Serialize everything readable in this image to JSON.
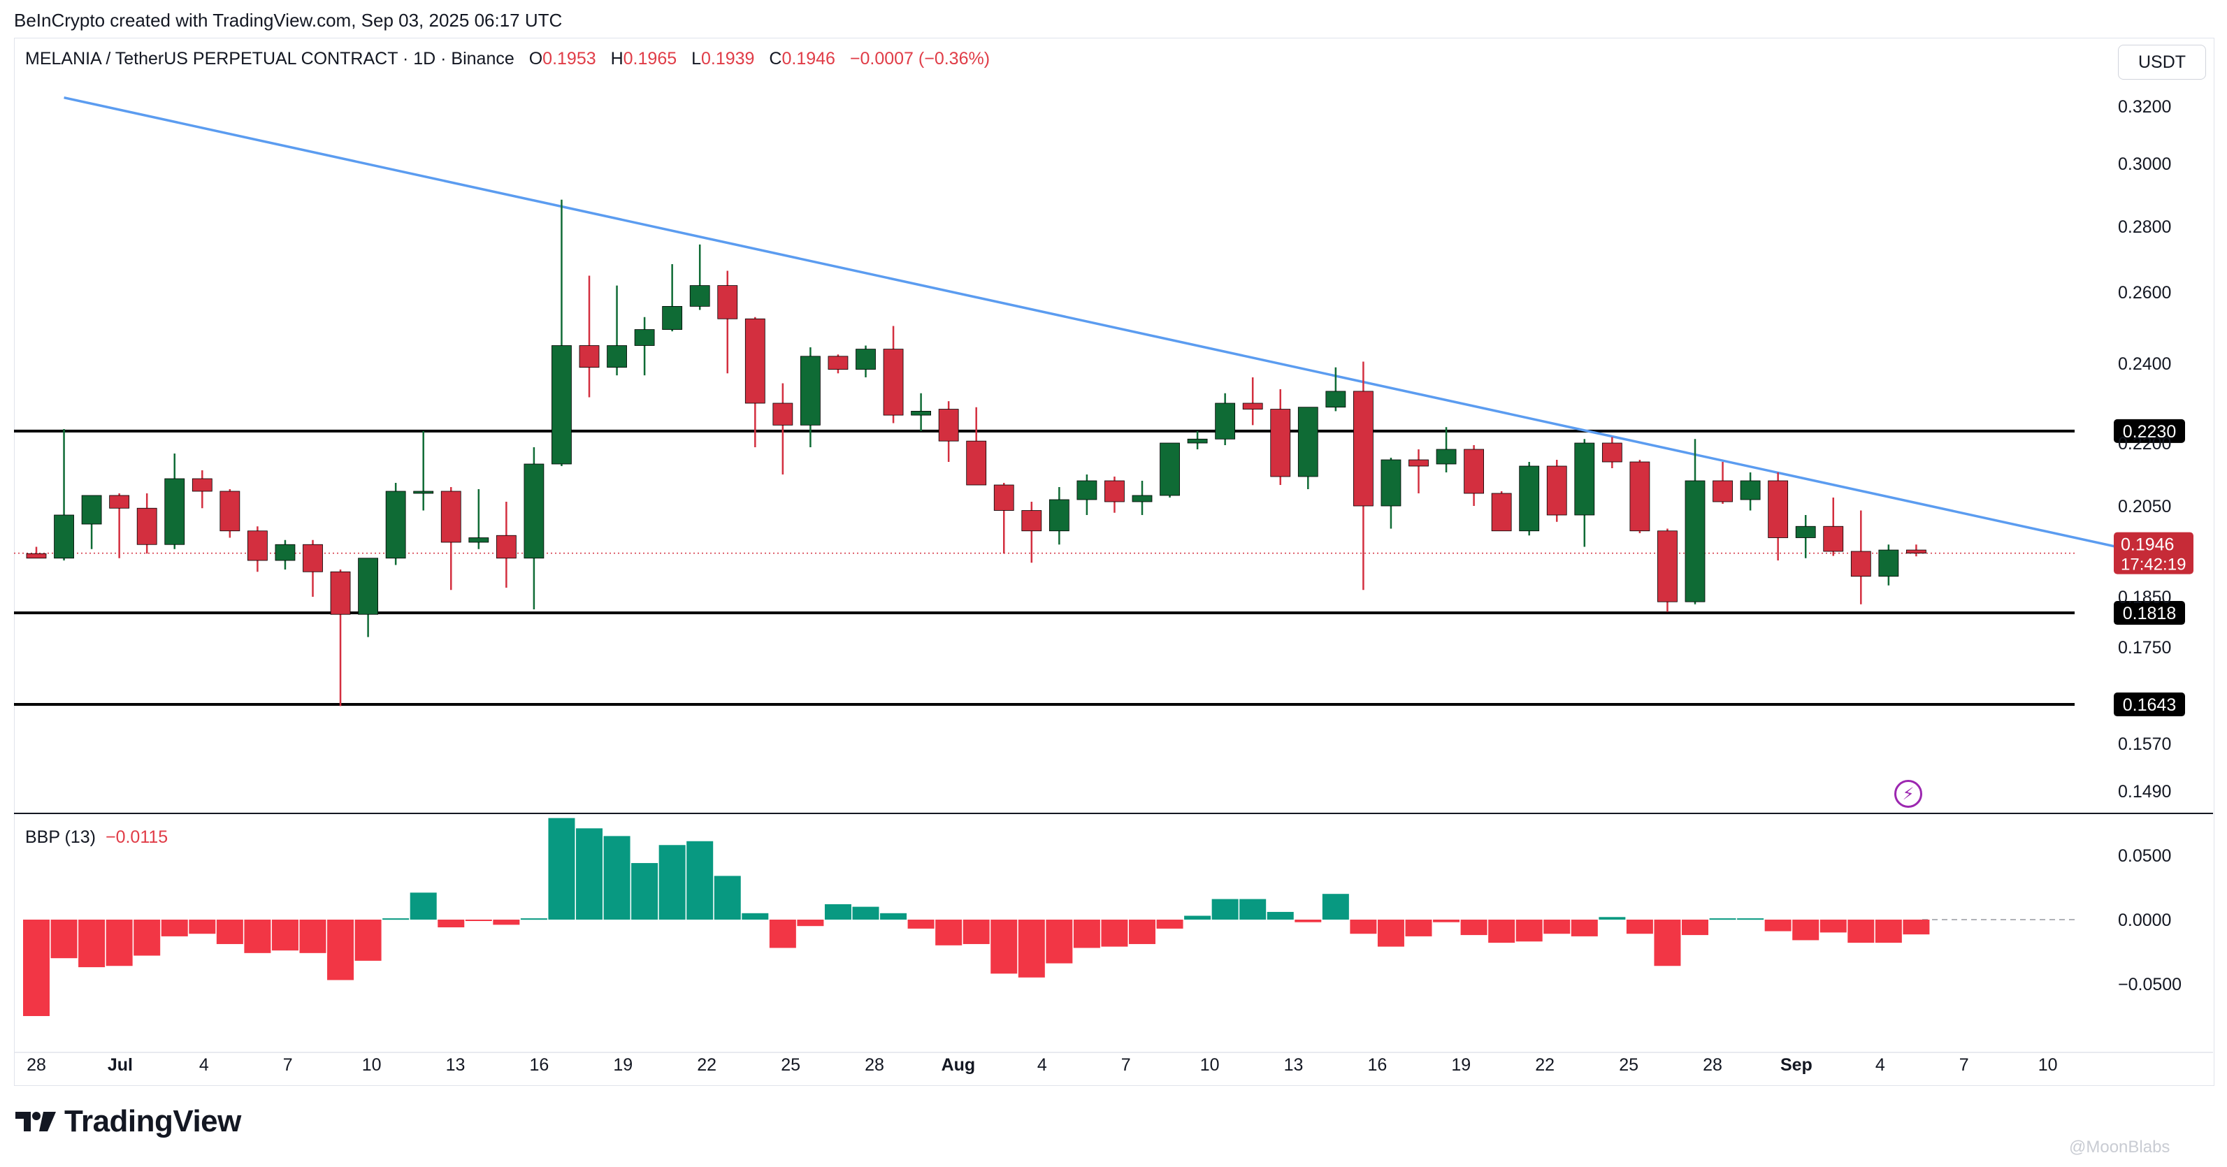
{
  "header": {
    "credit": "BeInCrypto created with TradingView.com, Sep 03, 2025 06:17 UTC"
  },
  "symbol": {
    "name": "MELANIA / TetherUS PERPETUAL CONTRACT · 1D · Binance",
    "o_label": "O",
    "o": "0.1953",
    "h_label": "H",
    "h": "0.1965",
    "l_label": "L",
    "l": "0.1939",
    "c_label": "C",
    "c": "0.1946",
    "change": "−0.0007 (−0.36%)"
  },
  "currency": "USDT",
  "indicator": {
    "name": "BBP (13)",
    "value": "−0.0115"
  },
  "branding": {
    "logo_text": "TradingView",
    "watermark": "@MoonBlabs"
  },
  "colors": {
    "up": "#0f6b35",
    "down": "#d32f3f",
    "trendline": "#5b9cf0",
    "bbp_up": "#089981",
    "bbp_down": "#f23645",
    "price_tag": "#c62b37"
  },
  "chart_data": [
    {
      "type": "candlestick",
      "title": "MELANIA / TetherUS PERPETUAL CONTRACT · 1D · Binance",
      "x_ticks": [
        "28",
        "Jul",
        "4",
        "7",
        "10",
        "13",
        "16",
        "19",
        "22",
        "25",
        "28",
        "Aug",
        "4",
        "7",
        "10",
        "13",
        "16",
        "19",
        "22",
        "25",
        "28",
        "Sep",
        "4",
        "7",
        "10"
      ],
      "y_ticks": [
        "0.3200",
        "0.3000",
        "0.2800",
        "0.2600",
        "0.2400",
        "0.2200",
        "0.2050",
        "0.1850",
        "0.1750",
        "0.1570",
        "0.1490"
      ],
      "levels": [
        {
          "value": 0.223,
          "label": "0.2230"
        },
        {
          "value": 0.1818,
          "label": "0.1818"
        },
        {
          "value": 0.1643,
          "label": "0.1643"
        }
      ],
      "last_price": {
        "value": 0.1946,
        "label": "0.1946",
        "countdown": "17:42:19"
      },
      "trendline": {
        "from": {
          "date": "Jun 29",
          "value": 0.323
        },
        "to": {
          "date": "Sep 12",
          "value": 0.195
        }
      },
      "candles": [
        {
          "d": "Jun 28",
          "o": 0.1945,
          "h": 0.196,
          "l": 0.1935,
          "c": 0.1935
        },
        {
          "d": "Jun 29",
          "o": 0.1935,
          "h": 0.2235,
          "l": 0.193,
          "c": 0.203
        },
        {
          "d": "Jun 30",
          "o": 0.201,
          "h": 0.2075,
          "l": 0.1955,
          "c": 0.2075
        },
        {
          "d": "Jul 1",
          "o": 0.2075,
          "h": 0.208,
          "l": 0.1935,
          "c": 0.2045
        },
        {
          "d": "Jul 2",
          "o": 0.2045,
          "h": 0.208,
          "l": 0.1945,
          "c": 0.1965
        },
        {
          "d": "Jul 3",
          "o": 0.1965,
          "h": 0.2175,
          "l": 0.1955,
          "c": 0.2115
        },
        {
          "d": "Jul 4",
          "o": 0.2115,
          "h": 0.2135,
          "l": 0.2045,
          "c": 0.2085
        },
        {
          "d": "Jul 5",
          "o": 0.2085,
          "h": 0.209,
          "l": 0.198,
          "c": 0.1995
        },
        {
          "d": "Jul 6",
          "o": 0.1995,
          "h": 0.2005,
          "l": 0.1905,
          "c": 0.193
        },
        {
          "d": "Jul 7",
          "o": 0.193,
          "h": 0.1975,
          "l": 0.191,
          "c": 0.1965
        },
        {
          "d": "Jul 8",
          "o": 0.1965,
          "h": 0.1975,
          "l": 0.185,
          "c": 0.1905
        },
        {
          "d": "Jul 9",
          "o": 0.1905,
          "h": 0.191,
          "l": 0.164,
          "c": 0.1815
        },
        {
          "d": "Jul 10",
          "o": 0.1815,
          "h": 0.1935,
          "l": 0.177,
          "c": 0.1935
        },
        {
          "d": "Jul 11",
          "o": 0.1935,
          "h": 0.2105,
          "l": 0.192,
          "c": 0.2085
        },
        {
          "d": "Jul 12",
          "o": 0.2085,
          "h": 0.223,
          "l": 0.204,
          "c": 0.2085
        },
        {
          "d": "Jul 13",
          "o": 0.2085,
          "h": 0.2095,
          "l": 0.1865,
          "c": 0.197
        },
        {
          "d": "Jul 14",
          "o": 0.197,
          "h": 0.209,
          "l": 0.1955,
          "c": 0.198
        },
        {
          "d": "Jul 15",
          "o": 0.1985,
          "h": 0.206,
          "l": 0.187,
          "c": 0.1935
        },
        {
          "d": "Jul 16",
          "o": 0.1935,
          "h": 0.219,
          "l": 0.1825,
          "c": 0.215
        },
        {
          "d": "Jul 17",
          "o": 0.215,
          "h": 0.2885,
          "l": 0.2145,
          "c": 0.245
        },
        {
          "d": "Jul 18",
          "o": 0.245,
          "h": 0.265,
          "l": 0.2315,
          "c": 0.239
        },
        {
          "d": "Jul 19",
          "o": 0.239,
          "h": 0.262,
          "l": 0.237,
          "c": 0.245
        },
        {
          "d": "Jul 20",
          "o": 0.245,
          "h": 0.253,
          "l": 0.237,
          "c": 0.2495
        },
        {
          "d": "Jul 21",
          "o": 0.2495,
          "h": 0.2685,
          "l": 0.249,
          "c": 0.256
        },
        {
          "d": "Jul 22",
          "o": 0.256,
          "h": 0.2745,
          "l": 0.255,
          "c": 0.262
        },
        {
          "d": "Jul 23",
          "o": 0.262,
          "h": 0.2665,
          "l": 0.2375,
          "c": 0.2525
        },
        {
          "d": "Jul 24",
          "o": 0.2525,
          "h": 0.253,
          "l": 0.219,
          "c": 0.23
        },
        {
          "d": "Jul 25",
          "o": 0.23,
          "h": 0.235,
          "l": 0.2125,
          "c": 0.2245
        },
        {
          "d": "Jul 26",
          "o": 0.2245,
          "h": 0.2445,
          "l": 0.219,
          "c": 0.242
        },
        {
          "d": "Jul 27",
          "o": 0.242,
          "h": 0.2425,
          "l": 0.2375,
          "c": 0.2385
        },
        {
          "d": "Jul 28",
          "o": 0.2385,
          "h": 0.245,
          "l": 0.2365,
          "c": 0.244
        },
        {
          "d": "Jul 29",
          "o": 0.244,
          "h": 0.2505,
          "l": 0.225,
          "c": 0.227
        },
        {
          "d": "Jul 30",
          "o": 0.227,
          "h": 0.2325,
          "l": 0.223,
          "c": 0.228
        },
        {
          "d": "Jul 31",
          "o": 0.2285,
          "h": 0.2305,
          "l": 0.2155,
          "c": 0.2205
        },
        {
          "d": "Aug 1",
          "o": 0.2205,
          "h": 0.229,
          "l": 0.21,
          "c": 0.21
        },
        {
          "d": "Aug 2",
          "o": 0.21,
          "h": 0.2105,
          "l": 0.1945,
          "c": 0.204
        },
        {
          "d": "Aug 3",
          "o": 0.204,
          "h": 0.206,
          "l": 0.1925,
          "c": 0.1995
        },
        {
          "d": "Aug 4",
          "o": 0.1995,
          "h": 0.2095,
          "l": 0.1965,
          "c": 0.2065
        },
        {
          "d": "Aug 5",
          "o": 0.2065,
          "h": 0.2125,
          "l": 0.203,
          "c": 0.211
        },
        {
          "d": "Aug 6",
          "o": 0.211,
          "h": 0.212,
          "l": 0.2035,
          "c": 0.206
        },
        {
          "d": "Aug 7",
          "o": 0.206,
          "h": 0.211,
          "l": 0.203,
          "c": 0.2075
        },
        {
          "d": "Aug 8",
          "o": 0.2075,
          "h": 0.22,
          "l": 0.207,
          "c": 0.22
        },
        {
          "d": "Aug 9",
          "o": 0.22,
          "h": 0.223,
          "l": 0.2185,
          "c": 0.221
        },
        {
          "d": "Aug 10",
          "o": 0.221,
          "h": 0.2325,
          "l": 0.2195,
          "c": 0.23
        },
        {
          "d": "Aug 11",
          "o": 0.23,
          "h": 0.2365,
          "l": 0.2245,
          "c": 0.2285
        },
        {
          "d": "Aug 12",
          "o": 0.2285,
          "h": 0.2335,
          "l": 0.21,
          "c": 0.212
        },
        {
          "d": "Aug 13",
          "o": 0.212,
          "h": 0.229,
          "l": 0.209,
          "c": 0.229
        },
        {
          "d": "Aug 14",
          "o": 0.229,
          "h": 0.239,
          "l": 0.228,
          "c": 0.233
        },
        {
          "d": "Aug 15",
          "o": 0.233,
          "h": 0.2405,
          "l": 0.1865,
          "c": 0.205
        },
        {
          "d": "Aug 16",
          "o": 0.205,
          "h": 0.2165,
          "l": 0.2,
          "c": 0.216
        },
        {
          "d": "Aug 17",
          "o": 0.216,
          "h": 0.2185,
          "l": 0.208,
          "c": 0.2145
        },
        {
          "d": "Aug 18",
          "o": 0.215,
          "h": 0.224,
          "l": 0.213,
          "c": 0.2185
        },
        {
          "d": "Aug 19",
          "o": 0.2185,
          "h": 0.2195,
          "l": 0.205,
          "c": 0.208
        },
        {
          "d": "Aug 20",
          "o": 0.208,
          "h": 0.2085,
          "l": 0.1995,
          "c": 0.1995
        },
        {
          "d": "Aug 21",
          "o": 0.1995,
          "h": 0.2155,
          "l": 0.1985,
          "c": 0.2145
        },
        {
          "d": "Aug 22",
          "o": 0.2145,
          "h": 0.216,
          "l": 0.2015,
          "c": 0.203
        },
        {
          "d": "Aug 23",
          "o": 0.203,
          "h": 0.221,
          "l": 0.196,
          "c": 0.22
        },
        {
          "d": "Aug 24",
          "o": 0.22,
          "h": 0.2215,
          "l": 0.214,
          "c": 0.2155
        },
        {
          "d": "Aug 25",
          "o": 0.2155,
          "h": 0.216,
          "l": 0.199,
          "c": 0.1995
        },
        {
          "d": "Aug 26",
          "o": 0.1995,
          "h": 0.2,
          "l": 0.182,
          "c": 0.184
        },
        {
          "d": "Aug 27",
          "o": 0.184,
          "h": 0.221,
          "l": 0.1835,
          "c": 0.211
        },
        {
          "d": "Aug 28",
          "o": 0.211,
          "h": 0.2155,
          "l": 0.2055,
          "c": 0.206
        },
        {
          "d": "Aug 29",
          "o": 0.2065,
          "h": 0.213,
          "l": 0.204,
          "c": 0.211
        },
        {
          "d": "Aug 30",
          "o": 0.211,
          "h": 0.213,
          "l": 0.193,
          "c": 0.198
        },
        {
          "d": "Aug 31",
          "o": 0.198,
          "h": 0.203,
          "l": 0.1935,
          "c": 0.2005
        },
        {
          "d": "Sep 1",
          "o": 0.2005,
          "h": 0.207,
          "l": 0.194,
          "c": 0.195
        },
        {
          "d": "Sep 2",
          "o": 0.195,
          "h": 0.204,
          "l": 0.1835,
          "c": 0.1895
        },
        {
          "d": "Sep 3",
          "o": 0.1895,
          "h": 0.1965,
          "l": 0.1875,
          "c": 0.1953
        },
        {
          "d": "Sep 4",
          "o": 0.1953,
          "h": 0.1965,
          "l": 0.1939,
          "c": 0.1946
        }
      ]
    },
    {
      "type": "bar",
      "title": "BBP (13)",
      "y_ticks": [
        "0.0500",
        "0.0000",
        "−0.0500"
      ],
      "values": [
        -0.075,
        -0.03,
        -0.037,
        -0.036,
        -0.028,
        -0.013,
        -0.011,
        -0.019,
        -0.026,
        -0.024,
        -0.026,
        -0.047,
        -0.032,
        0.001,
        0.021,
        -0.006,
        -0.001,
        -0.004,
        0.001,
        0.079,
        0.071,
        0.065,
        0.044,
        0.058,
        0.061,
        0.034,
        0.005,
        -0.022,
        -0.005,
        0.012,
        0.01,
        0.005,
        -0.007,
        -0.02,
        -0.019,
        -0.042,
        -0.045,
        -0.034,
        -0.022,
        -0.021,
        -0.019,
        -0.007,
        0.003,
        0.016,
        0.016,
        0.006,
        -0.002,
        0.02,
        -0.011,
        -0.021,
        -0.013,
        -0.002,
        -0.012,
        -0.018,
        -0.017,
        -0.011,
        -0.013,
        0.002,
        -0.011,
        -0.036,
        -0.012,
        0.001,
        0.001,
        -0.009,
        -0.016,
        -0.01,
        -0.018,
        -0.018,
        -0.0115
      ]
    }
  ]
}
